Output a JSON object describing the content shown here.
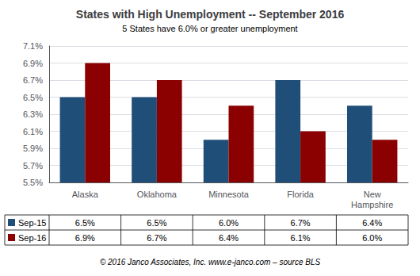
{
  "chart_data": {
    "type": "bar",
    "title": "States with High Unemployment -- September 2016",
    "subtitle": "5 States have 6.0% or greater unemployment",
    "annotations": [
      "© 2016 Janco Associates, Inc. www.e-janco.com – source BLS"
    ],
    "categories": [
      "Alaska",
      "Oklahoma",
      "Minnesota",
      "Florida",
      "New\nHampshire"
    ],
    "series": [
      {
        "name": "Sep-15",
        "color": "#1F4E79",
        "values": [
          6.5,
          6.5,
          6.0,
          6.7,
          6.4
        ],
        "value_labels": [
          "6.5%",
          "6.5%",
          "6.0%",
          "6.7%",
          "6.4%"
        ]
      },
      {
        "name": "Sep-16",
        "color": "#8B0000",
        "values": [
          6.9,
          6.7,
          6.4,
          6.1,
          6.0
        ],
        "value_labels": [
          "6.9%",
          "6.7%",
          "6.4%",
          "6.1%",
          "6.0%"
        ]
      }
    ],
    "ylim": [
      5.5,
      7.1
    ],
    "yticks": [
      {
        "value": 5.5,
        "label": "5.5%"
      },
      {
        "value": 5.7,
        "label": "5.7%"
      },
      {
        "value": 5.9,
        "label": "5.9%"
      },
      {
        "value": 6.1,
        "label": "6.1%"
      },
      {
        "value": 6.3,
        "label": "6.3%"
      },
      {
        "value": 6.5,
        "label": "6.5%"
      },
      {
        "value": 6.7,
        "label": "6.7%"
      },
      {
        "value": 6.9,
        "label": "6.9%"
      },
      {
        "value": 7.1,
        "label": "7.1%"
      }
    ],
    "grid": true
  }
}
